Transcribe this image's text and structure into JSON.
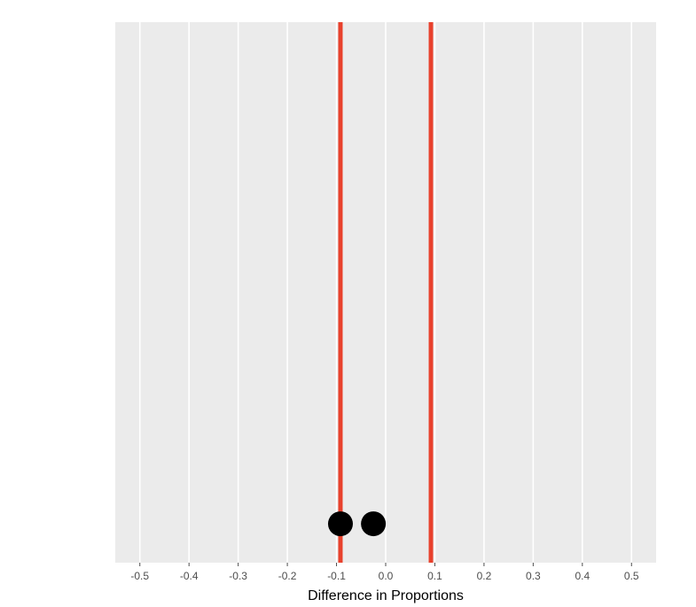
{
  "chart_data": {
    "type": "scatter",
    "title": "",
    "xlabel": "Difference in Proportions",
    "ylabel": "",
    "xlim": [
      -0.55,
      0.55
    ],
    "x_ticks": [
      "-0.5",
      "-0.4",
      "-0.3",
      "-0.2",
      "-0.1",
      "0.0",
      "0.1",
      "0.2",
      "0.3",
      "0.4",
      "0.5"
    ],
    "x_tick_values": [
      -0.5,
      -0.4,
      -0.3,
      -0.2,
      -0.1,
      0.0,
      0.1,
      0.2,
      0.3,
      0.4,
      0.5
    ],
    "points": [
      {
        "x": -0.092
      },
      {
        "x": -0.025
      }
    ],
    "reference_lines": [
      {
        "x": -0.092,
        "color": "#e8412c"
      },
      {
        "x": 0.092,
        "color": "#e8412c"
      }
    ],
    "grid": true,
    "legend": "none",
    "panel_color": "#ebebeb",
    "grid_color": "#ffffff",
    "point_color": "#000000"
  }
}
